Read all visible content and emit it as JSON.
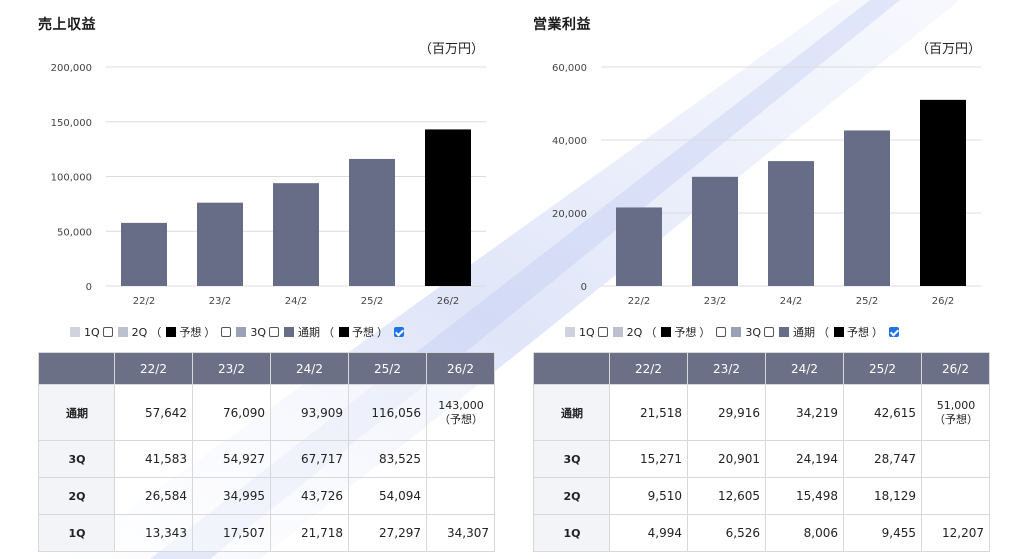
{
  "colors": {
    "bar": "#676d87",
    "forecast": "#000000",
    "header": "#6b7086",
    "grid": "#dcdcdc"
  },
  "legend": {
    "q1": "1Q",
    "q2": "2Q",
    "q3": "3Q",
    "annual": "通期",
    "forecast": "予想",
    "paren_open": "（",
    "paren_close": "）",
    "sw_q1": "#d0d3dd",
    "sw_q2": "#bcc0cf",
    "sw_q3": "#9aa0b6",
    "sw_annual": "#676d87"
  },
  "sales": {
    "title": "売上収益",
    "unit": "（百万円）",
    "table": {
      "columns": [
        "22/2",
        "23/2",
        "24/2",
        "25/2",
        "26/2"
      ],
      "rows": [
        {
          "label": "通期",
          "values": [
            "57,642",
            "76,090",
            "93,909",
            "116,056",
            "143,000"
          ],
          "note": "（予想）"
        },
        {
          "label": "3Q",
          "values": [
            "41,583",
            "54,927",
            "67,717",
            "83,525",
            ""
          ]
        },
        {
          "label": "2Q",
          "values": [
            "26,584",
            "34,995",
            "43,726",
            "54,094",
            ""
          ]
        },
        {
          "label": "1Q",
          "values": [
            "13,343",
            "17,507",
            "21,718",
            "27,297",
            "34,307"
          ]
        }
      ]
    }
  },
  "profit": {
    "title": "営業利益",
    "unit": "（百万円）",
    "table": {
      "columns": [
        "22/2",
        "23/2",
        "24/2",
        "25/2",
        "26/2"
      ],
      "rows": [
        {
          "label": "通期",
          "values": [
            "21,518",
            "29,916",
            "34,219",
            "42,615",
            "51,000"
          ],
          "note": "（予想）"
        },
        {
          "label": "3Q",
          "values": [
            "15,271",
            "20,901",
            "24,194",
            "28,747",
            ""
          ]
        },
        {
          "label": "2Q",
          "values": [
            "9,510",
            "12,605",
            "15,498",
            "18,129",
            ""
          ]
        },
        {
          "label": "1Q",
          "values": [
            "4,994",
            "6,526",
            "8,006",
            "9,455",
            "12,207"
          ]
        }
      ]
    }
  },
  "chart_data": [
    {
      "type": "bar",
      "title": "売上収益",
      "ylabel": "（百万円）",
      "categories": [
        "22/2",
        "23/2",
        "24/2",
        "25/2",
        "26/2"
      ],
      "values": [
        57642,
        76090,
        93909,
        116056,
        143000
      ],
      "forecast": [
        false,
        false,
        false,
        false,
        true
      ],
      "ylim": [
        0,
        200000
      ],
      "yticks": [
        0,
        50000,
        100000,
        150000,
        200000
      ],
      "ytick_labels": [
        "0",
        "50,000",
        "100,000",
        "150,000",
        "200,000"
      ],
      "grid": true
    },
    {
      "type": "bar",
      "title": "営業利益",
      "ylabel": "（百万円）",
      "categories": [
        "22/2",
        "23/2",
        "24/2",
        "25/2",
        "26/2"
      ],
      "values": [
        21518,
        29916,
        34219,
        42615,
        51000
      ],
      "forecast": [
        false,
        false,
        false,
        false,
        true
      ],
      "ylim": [
        0,
        60000
      ],
      "yticks": [
        0,
        20000,
        40000,
        60000
      ],
      "ytick_labels": [
        "0",
        "20,000",
        "40,000",
        "60,000"
      ],
      "grid": true
    }
  ]
}
